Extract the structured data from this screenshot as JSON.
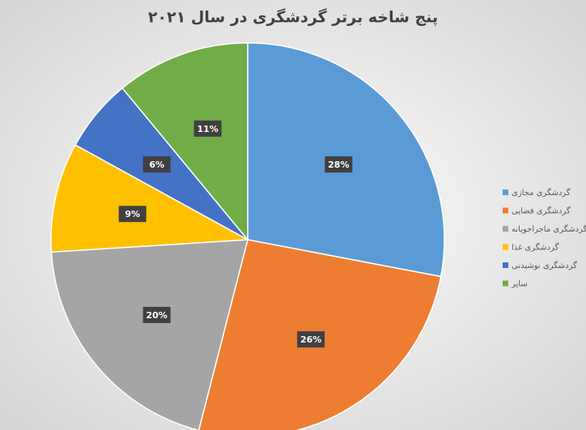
{
  "chart_data": {
    "type": "pie",
    "title": "پنج شاخه برتر گردشگری در سال ۲۰۲۱",
    "categories": [
      "گردشگری مجازی",
      "گردشگری فضایی",
      "گردشگری ماجراجویانه",
      "گردشگری غذا",
      "گردشگری نوشیدنی",
      "سایر"
    ],
    "values": [
      28,
      26,
      20,
      9,
      6,
      11
    ],
    "value_labels": [
      "28%",
      "26%",
      "20%",
      "9%",
      "6%",
      "11%"
    ],
    "colors": [
      "#5b9bd5",
      "#ed7d31",
      "#a5a5a5",
      "#ffc000",
      "#4472c4",
      "#70ad47"
    ],
    "legend": "right"
  }
}
